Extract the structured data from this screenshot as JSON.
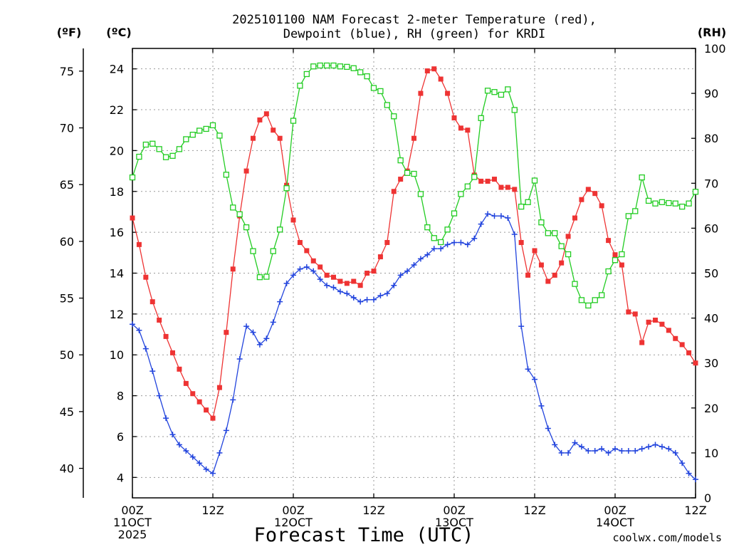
{
  "title_line1": "2025101100 NAM Forecast 2-meter Temperature (red),",
  "title_line2": "Dewpoint (blue), RH (green) for KRDI",
  "xlabel": "Forecast Time (UTC)",
  "watermark": "coolwx.com/models",
  "left_outer_axis_label": "(ºF)",
  "left_inner_axis_label": "(ºC)",
  "right_axis_label": "(RH)",
  "colors": {
    "temperature": "#ee3333",
    "dewpoint": "#2244dd",
    "rh": "#22cc22",
    "watermark": "#dd3333"
  },
  "chart_data": {
    "type": "line",
    "title": "2025101100 NAM Forecast 2-meter Temperature (red), Dewpoint (blue), RH (green) for KRDI",
    "xlabel": "Forecast Time (UTC)",
    "x_units": "forecast hours from 2025-10-11 00Z",
    "x_ticks": [
      {
        "h": 0,
        "line1": "00Z",
        "line2": "11OCT",
        "line3": "2025"
      },
      {
        "h": 12,
        "line1": "12Z",
        "line2": "",
        "line3": ""
      },
      {
        "h": 24,
        "line1": "00Z",
        "line2": "12OCT",
        "line3": ""
      },
      {
        "h": 36,
        "line1": "12Z",
        "line2": "",
        "line3": ""
      },
      {
        "h": 48,
        "line1": "00Z",
        "line2": "13OCT",
        "line3": ""
      },
      {
        "h": 60,
        "line1": "12Z",
        "line2": "",
        "line3": ""
      },
      {
        "h": 72,
        "line1": "00Z",
        "line2": "14OCT",
        "line3": ""
      },
      {
        "h": 84,
        "line1": "12Z",
        "line2": "",
        "line3": ""
      }
    ],
    "xlim": [
      0,
      84
    ],
    "ylim_c": [
      3,
      25
    ],
    "yticks_c": [
      "4",
      "6",
      "8",
      "10",
      "12",
      "14",
      "16",
      "18",
      "20",
      "22",
      "24"
    ],
    "yticks_f": [
      "40",
      "45",
      "50",
      "55",
      "60",
      "65",
      "70",
      "75"
    ],
    "ylim_rh": [
      0,
      100
    ],
    "yticks_rh": [
      "0",
      "10",
      "20",
      "30",
      "40",
      "50",
      "60",
      "70",
      "80",
      "90",
      "100"
    ],
    "grid": true,
    "x": [
      0,
      1,
      2,
      3,
      4,
      5,
      6,
      7,
      8,
      9,
      10,
      11,
      12,
      13,
      14,
      15,
      16,
      17,
      18,
      19,
      20,
      21,
      22,
      23,
      24,
      25,
      26,
      27,
      28,
      29,
      30,
      31,
      32,
      33,
      34,
      35,
      36,
      37,
      38,
      39,
      40,
      41,
      42,
      43,
      44,
      45,
      46,
      47,
      48,
      49,
      50,
      51,
      52,
      53,
      54,
      55,
      56,
      57,
      58,
      59,
      60,
      61,
      62,
      63,
      64,
      65,
      66,
      67,
      68,
      69,
      70,
      71,
      72,
      73,
      74,
      75,
      76,
      77,
      78,
      79,
      80,
      81,
      82,
      83,
      84
    ],
    "series": [
      {
        "name": "Temperature",
        "units": "C",
        "color": "#ee3333",
        "marker": "filled-square",
        "values": [
          16.7,
          15.4,
          13.8,
          12.6,
          11.7,
          10.9,
          10.1,
          9.3,
          8.6,
          8.1,
          7.7,
          7.3,
          6.9,
          8.4,
          11.1,
          14.2,
          16.8,
          19.0,
          20.6,
          21.5,
          21.8,
          21.0,
          20.6,
          18.3,
          16.6,
          15.5,
          15.1,
          14.6,
          14.3,
          13.9,
          13.8,
          13.6,
          13.5,
          13.6,
          13.4,
          14.0,
          14.1,
          14.8,
          15.5,
          18.0,
          18.6,
          19.0,
          20.6,
          22.8,
          23.9,
          24.0,
          23.5,
          22.8,
          21.6,
          21.1,
          21.0,
          18.8,
          18.5,
          18.5,
          18.6,
          18.2,
          18.2,
          18.1,
          15.5,
          13.9,
          15.1,
          14.4,
          13.6,
          13.9,
          14.5,
          15.8,
          16.7,
          17.6,
          18.1,
          17.9,
          17.3,
          15.6,
          14.9,
          14.4,
          12.1,
          12.0,
          10.6,
          11.6,
          11.7,
          11.5,
          11.2,
          10.8,
          10.5,
          10.1,
          9.6
        ]
      },
      {
        "name": "Dewpoint",
        "units": "C",
        "color": "#2244dd",
        "marker": "plus",
        "values": [
          11.5,
          11.2,
          10.3,
          9.2,
          8.0,
          6.9,
          6.1,
          5.6,
          5.3,
          5.0,
          4.7,
          4.4,
          4.2,
          5.2,
          6.3,
          7.8,
          9.8,
          11.4,
          11.1,
          10.5,
          10.8,
          11.6,
          12.6,
          13.5,
          13.9,
          14.2,
          14.3,
          14.1,
          13.7,
          13.4,
          13.3,
          13.1,
          13.0,
          12.8,
          12.6,
          12.7,
          12.7,
          12.9,
          13.0,
          13.4,
          13.9,
          14.1,
          14.4,
          14.7,
          14.9,
          15.2,
          15.2,
          15.4,
          15.5,
          15.5,
          15.4,
          15.7,
          16.4,
          16.9,
          16.8,
          16.8,
          16.7,
          15.9,
          11.4,
          9.3,
          8.8,
          7.5,
          6.4,
          5.6,
          5.2,
          5.2,
          5.7,
          5.5,
          5.3,
          5.3,
          5.4,
          5.2,
          5.4,
          5.3,
          5.3,
          5.3,
          5.4,
          5.5,
          5.6,
          5.5,
          5.4,
          5.2,
          4.7,
          4.2,
          3.9
        ]
      },
      {
        "name": "RH",
        "units": "%",
        "color": "#22cc22",
        "marker": "open-square",
        "values": [
          71.3,
          75.9,
          78.6,
          78.8,
          77.6,
          75.8,
          76.1,
          77.6,
          79.8,
          80.8,
          81.7,
          82.1,
          82.9,
          80.6,
          71.9,
          64.6,
          63.1,
          60.2,
          54.9,
          49.1,
          49.2,
          54.9,
          59.7,
          68.9,
          83.9,
          91.7,
          94.3,
          96.0,
          96.2,
          96.2,
          96.2,
          96.0,
          95.9,
          95.6,
          94.7,
          93.8,
          91.2,
          90.5,
          87.4,
          84.9,
          75.1,
          72.3,
          72.1,
          67.6,
          60.2,
          57.8,
          56.9,
          59.7,
          63.3,
          67.6,
          69.3,
          71.4,
          84.5,
          90.6,
          90.3,
          89.7,
          90.9,
          86.3,
          64.8,
          65.8,
          70.6,
          61.3,
          58.9,
          58.9,
          56.0,
          54.2,
          47.6,
          44.0,
          42.8,
          44.0,
          45.1,
          50.4,
          52.9,
          54.2,
          62.7,
          63.8,
          71.3,
          66.1,
          65.5,
          65.8,
          65.6,
          65.5,
          64.8,
          65.5,
          68.1
        ]
      }
    ]
  }
}
